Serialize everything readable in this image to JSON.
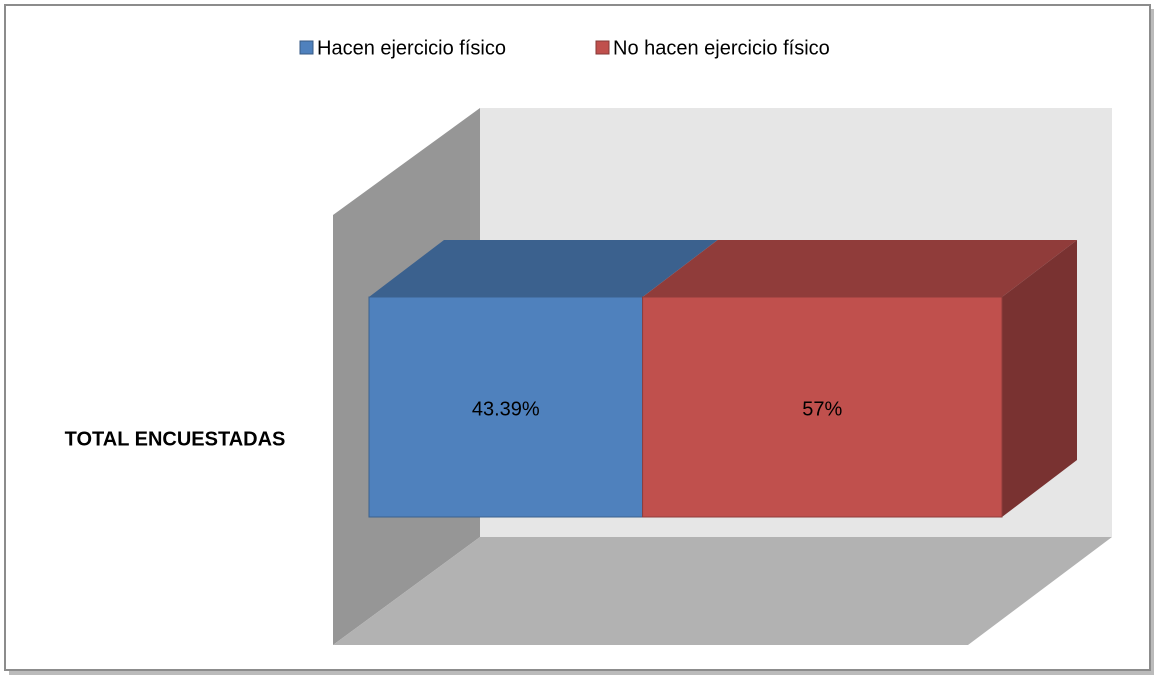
{
  "chart_data": {
    "type": "bar",
    "orientation": "horizontal",
    "stacked": true,
    "legend": "top",
    "categories": [
      "TOTAL ENCUESTADAS"
    ],
    "series": [
      {
        "name": "Hacen ejercicio físico",
        "color": "#4f81bd",
        "values": [
          43.39
        ],
        "value_labels": [
          "43.39%"
        ]
      },
      {
        "name": "No hacen ejercicio físico",
        "color": "#c0504d",
        "values": [
          57
        ],
        "value_labels": [
          "57%"
        ]
      }
    ]
  }
}
